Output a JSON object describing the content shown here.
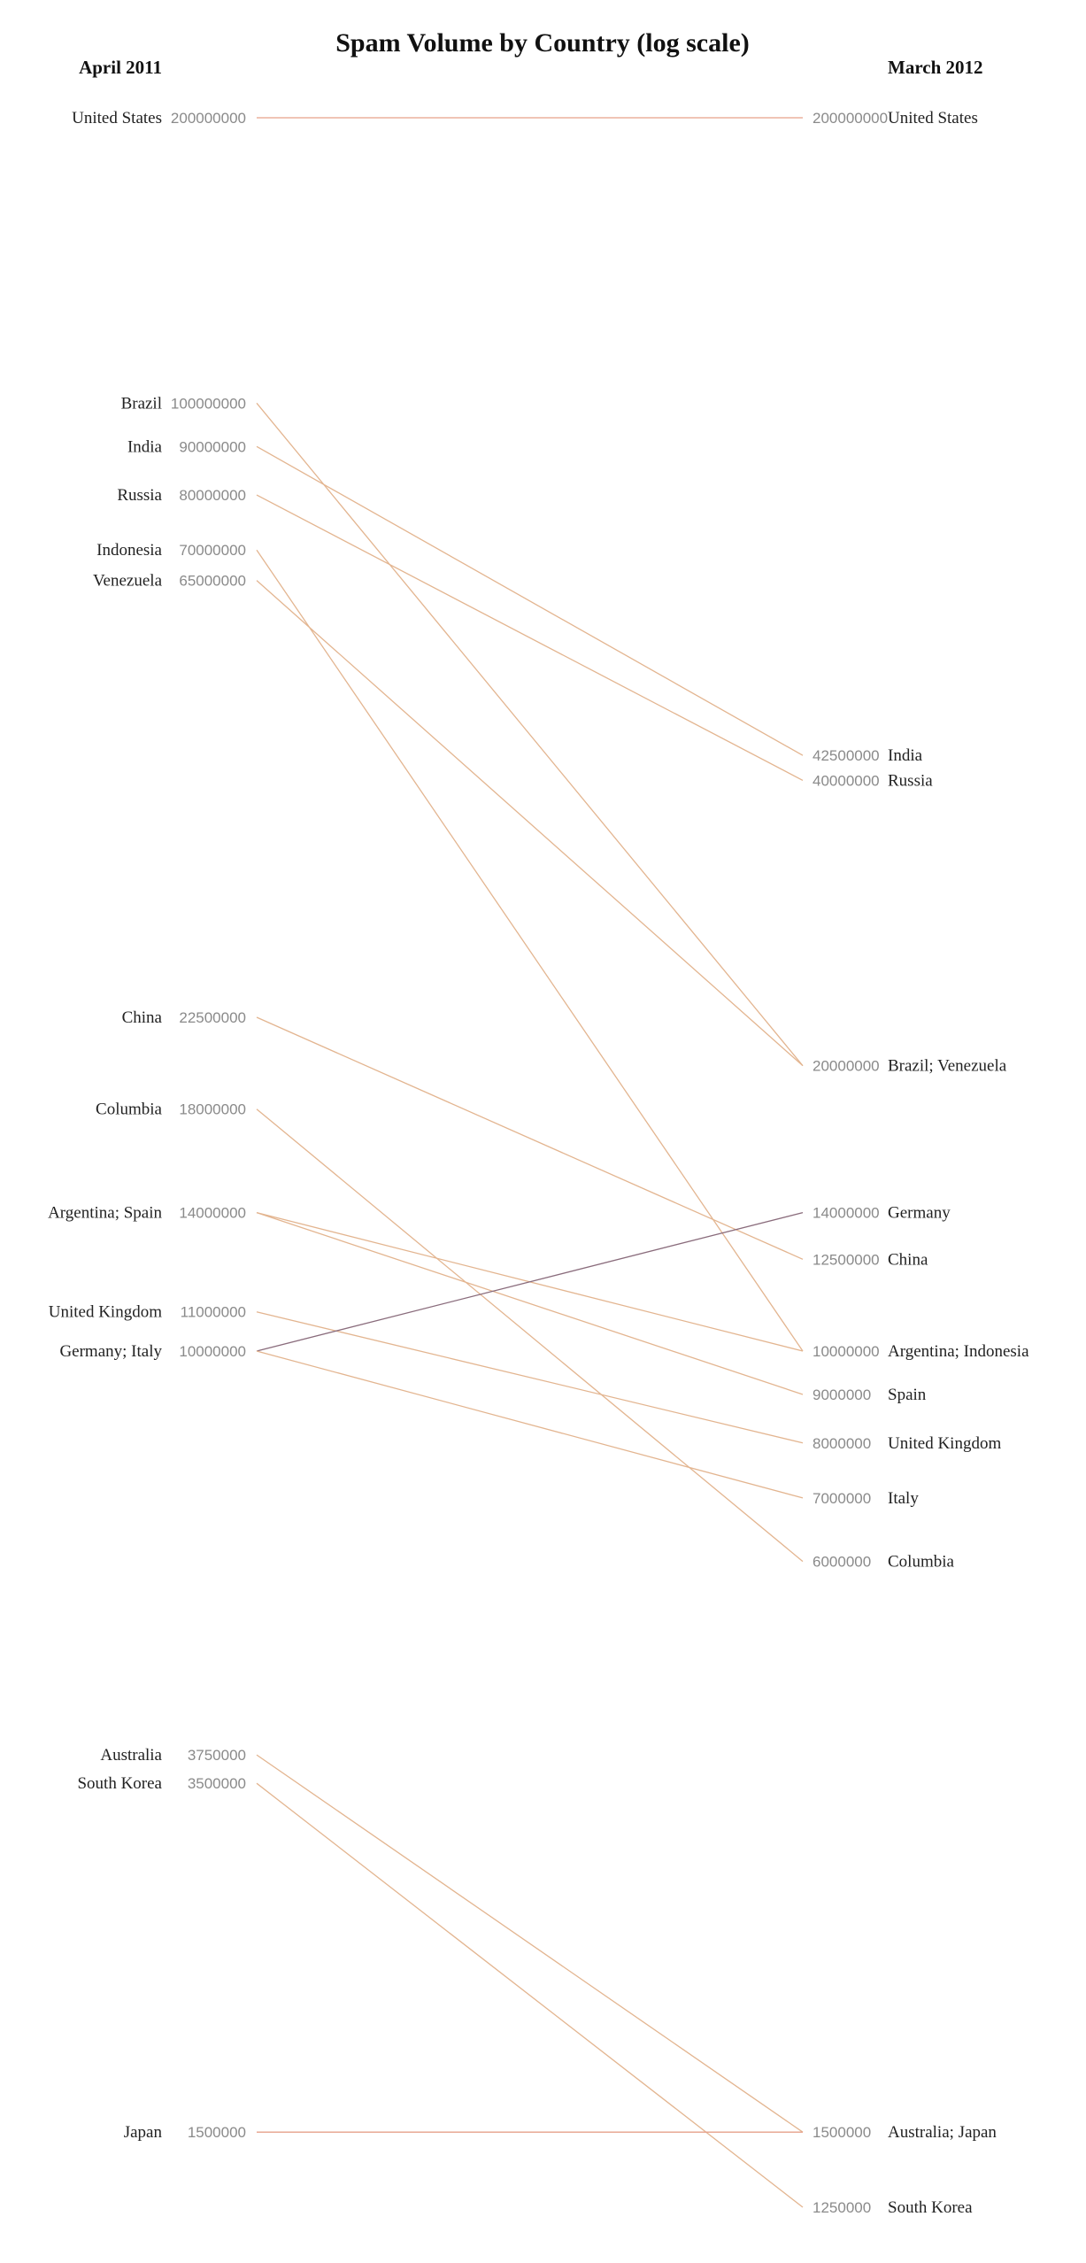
{
  "chart_data": {
    "type": "slope",
    "title": "Spam Volume by Country (log scale)",
    "scale": "log",
    "left_label": "April 2011",
    "right_label": "March 2012",
    "colors": {
      "decrease": "#e3b590",
      "increase": "#8a6c7c",
      "unchanged": "#e6a089"
    },
    "left_groups": [
      {
        "label": "United States",
        "value": 200000000
      },
      {
        "label": "Brazil",
        "value": 100000000
      },
      {
        "label": "India",
        "value": 90000000
      },
      {
        "label": "Russia",
        "value": 80000000
      },
      {
        "label": "Indonesia",
        "value": 70000000
      },
      {
        "label": "Venezuela",
        "value": 65000000
      },
      {
        "label": "China",
        "value": 22500000
      },
      {
        "label": "Columbia",
        "value": 18000000
      },
      {
        "label": "Argentina; Spain",
        "value": 14000000
      },
      {
        "label": "United Kingdom",
        "value": 11000000
      },
      {
        "label": "Germany; Italy",
        "value": 10000000
      },
      {
        "label": "Australia",
        "value": 3750000
      },
      {
        "label": "South Korea",
        "value": 3500000
      },
      {
        "label": "Japan",
        "value": 1500000
      }
    ],
    "right_groups": [
      {
        "label": "United States",
        "value": 200000000
      },
      {
        "label": "India",
        "value": 42500000
      },
      {
        "label": "Russia",
        "value": 40000000
      },
      {
        "label": "Brazil; Venezuela",
        "value": 20000000
      },
      {
        "label": "Germany",
        "value": 14000000
      },
      {
        "label": "China",
        "value": 12500000
      },
      {
        "label": "Argentina; Indonesia",
        "value": 10000000
      },
      {
        "label": "Spain",
        "value": 9000000
      },
      {
        "label": "United Kingdom",
        "value": 8000000
      },
      {
        "label": "Italy",
        "value": 7000000
      },
      {
        "label": "Columbia",
        "value": 6000000
      },
      {
        "label": "Australia; Japan",
        "value": 1500000
      },
      {
        "label": "South Korea",
        "value": 1250000
      }
    ],
    "series": [
      {
        "name": "United States",
        "values": [
          200000000,
          200000000
        ]
      },
      {
        "name": "Brazil",
        "values": [
          100000000,
          20000000
        ]
      },
      {
        "name": "India",
        "values": [
          90000000,
          42500000
        ]
      },
      {
        "name": "Russia",
        "values": [
          80000000,
          40000000
        ]
      },
      {
        "name": "Indonesia",
        "values": [
          70000000,
          10000000
        ]
      },
      {
        "name": "Venezuela",
        "values": [
          65000000,
          20000000
        ]
      },
      {
        "name": "China",
        "values": [
          22500000,
          12500000
        ]
      },
      {
        "name": "Columbia",
        "values": [
          18000000,
          6000000
        ]
      },
      {
        "name": "Argentina",
        "values": [
          14000000,
          10000000
        ]
      },
      {
        "name": "Spain",
        "values": [
          14000000,
          9000000
        ]
      },
      {
        "name": "United Kingdom",
        "values": [
          11000000,
          8000000
        ]
      },
      {
        "name": "Germany",
        "values": [
          10000000,
          14000000
        ]
      },
      {
        "name": "Italy",
        "values": [
          10000000,
          7000000
        ]
      },
      {
        "name": "Australia",
        "values": [
          3750000,
          1500000
        ]
      },
      {
        "name": "South Korea",
        "values": [
          3500000,
          1250000
        ]
      },
      {
        "name": "Japan",
        "values": [
          1500000,
          1500000
        ]
      }
    ]
  }
}
